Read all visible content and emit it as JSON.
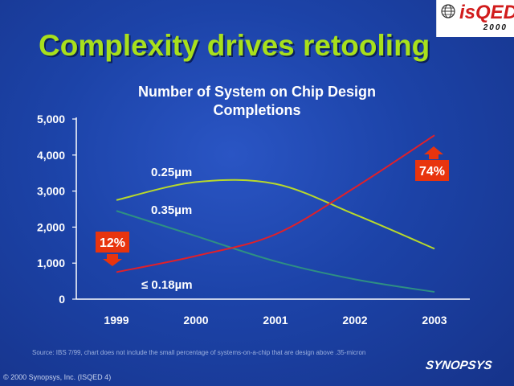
{
  "slide": {
    "title": "Complexity drives retooling",
    "source": "Source: IBS 7/99, chart does not include the small percentage of systems-on-a-chip that are design above .35-micron",
    "copyright": "© 2000 Synopsys, Inc. (ISQED 4)",
    "brand": "SYNOPSYS",
    "logo": {
      "name": "isQED",
      "year": "2000",
      "color": "#d11c1c"
    },
    "colors": {
      "background": "#1c43a8",
      "title": "#a8e01c",
      "callout": "#e8340e"
    }
  },
  "chart_data": {
    "type": "line",
    "title": "Number of System on Chip Design Completions",
    "title_lines": [
      "Number of System on Chip Design",
      "Completions"
    ],
    "categories": [
      "1999",
      "2000",
      "2001",
      "2002",
      "2003"
    ],
    "ylim": [
      0,
      5000
    ],
    "yticks": [
      0,
      1000,
      2000,
      3000,
      4000,
      5000
    ],
    "ytick_labels": [
      "0",
      "1,000",
      "2,000",
      "3,000",
      "4,000",
      "5,000"
    ],
    "grid": false,
    "series": [
      {
        "name": "0.25µm",
        "color": "#b8d92b",
        "values": [
          2750,
          3250,
          3200,
          2350,
          1400
        ]
      },
      {
        "name": "0.35µm",
        "color": "#2e8f83",
        "values": [
          2450,
          1750,
          1050,
          550,
          200
        ]
      },
      {
        "name": "≤ 0.18µm",
        "color": "#e0202a",
        "values": [
          750,
          1200,
          1800,
          3100,
          4550
        ]
      }
    ],
    "annotations": [
      {
        "text": "12%",
        "points_to": "1999",
        "direction": "down"
      },
      {
        "text": "74%",
        "points_to": "2003",
        "direction": "up"
      }
    ]
  }
}
